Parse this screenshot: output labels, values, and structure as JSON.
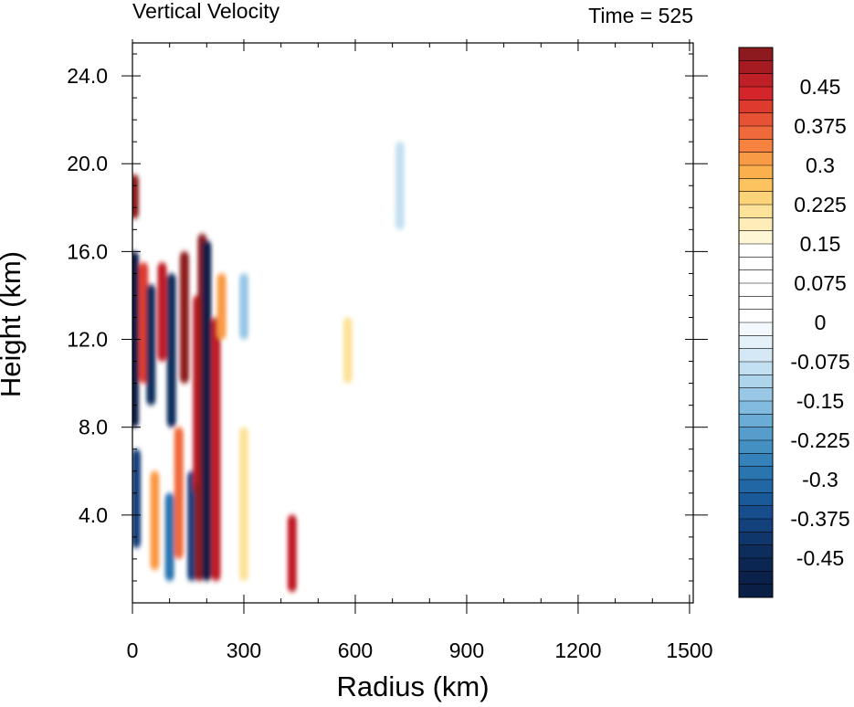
{
  "chart_data": {
    "type": "heatmap",
    "title": "Vertical Velocity",
    "subtitle": "Time = 525",
    "xlabel": "Radius (km)",
    "ylabel": "Height (km)",
    "xlim": [
      0,
      1510
    ],
    "ylim": [
      0,
      25.5
    ],
    "xticks": [
      "0",
      "300",
      "600",
      "900",
      "1200",
      "1500"
    ],
    "xtick_values": [
      0,
      300,
      600,
      900,
      1200,
      1500
    ],
    "yticks": [
      "4.0",
      "8.0",
      "12.0",
      "16.0",
      "20.0",
      "24.0"
    ],
    "ytick_values": [
      4,
      8,
      12,
      16,
      20,
      24
    ],
    "colorbar": {
      "levels": [
        -0.525,
        -0.5,
        -0.475,
        -0.45,
        -0.425,
        -0.4,
        -0.375,
        -0.35,
        -0.325,
        -0.3,
        -0.275,
        -0.25,
        -0.225,
        -0.2,
        -0.175,
        -0.15,
        -0.125,
        -0.1,
        -0.075,
        -0.05,
        -0.025,
        0,
        0.025,
        0.05,
        0.075,
        0.1,
        0.125,
        0.15,
        0.175,
        0.2,
        0.225,
        0.25,
        0.275,
        0.3,
        0.325,
        0.35,
        0.375,
        0.4,
        0.425,
        0.45,
        0.475,
        0.5,
        0.525
      ],
      "labels": [
        "0.45",
        "0.375",
        "0.3",
        "0.225",
        "0.15",
        "0.075",
        "0",
        "-0.075",
        "-0.15",
        "-0.225",
        "-0.3",
        "-0.375",
        "-0.45"
      ],
      "label_values": [
        0.45,
        0.375,
        0.3,
        0.225,
        0.15,
        0.075,
        0,
        -0.075,
        -0.15,
        -0.225,
        -0.3,
        -0.375,
        -0.45
      ],
      "colors_top_to_bottom": [
        "#8c1a1e",
        "#a61b22",
        "#bf1f26",
        "#d3252a",
        "#de3a2e",
        "#e85234",
        "#f0693a",
        "#f6823f",
        "#f99a44",
        "#fbb04d",
        "#fcc35f",
        "#fdd37a",
        "#fde29a",
        "#feedb8",
        "#fff6d6",
        "#ffffff",
        "#ffffff",
        "#ffffff",
        "#ffffff",
        "#ffffff",
        "#ffffff",
        "#f2f8fc",
        "#e4f1f9",
        "#d4e9f5",
        "#c2e0f1",
        "#aed4ec",
        "#98c8e6",
        "#81bbdf",
        "#6aacd6",
        "#569dcc",
        "#4490c3",
        "#3582ba",
        "#2a74b0",
        "#2167a6",
        "#1b5a9a",
        "#174d8c",
        "#13417c",
        "#10376b",
        "#0d2d5d",
        "#0b2652",
        "#0a2149",
        "#0a1f46"
      ]
    },
    "values": [
      {
        "r": 5,
        "z0": 8.0,
        "z1": 16.0,
        "w": -0.52
      },
      {
        "r": 5,
        "z0": 17.5,
        "z1": 19.5,
        "w": 0.5
      },
      {
        "r": 10,
        "z0": 2.5,
        "z1": 7.0,
        "w": -0.4
      },
      {
        "r": 30,
        "z0": 10.0,
        "z1": 15.5,
        "w": 0.4
      },
      {
        "r": 50,
        "z0": 9.0,
        "z1": 14.5,
        "w": -0.45
      },
      {
        "r": 60,
        "z0": 1.5,
        "z1": 6.0,
        "w": 0.3
      },
      {
        "r": 80,
        "z0": 11.0,
        "z1": 15.5,
        "w": 0.45
      },
      {
        "r": 100,
        "z0": 1.0,
        "z1": 5.0,
        "w": -0.3
      },
      {
        "r": 105,
        "z0": 8.0,
        "z1": 15.0,
        "w": -0.45
      },
      {
        "r": 125,
        "z0": 2.0,
        "z1": 8.0,
        "w": 0.35
      },
      {
        "r": 140,
        "z0": 10.0,
        "z1": 16.0,
        "w": 0.5
      },
      {
        "r": 160,
        "z0": 1.0,
        "z1": 6.0,
        "w": -0.4
      },
      {
        "r": 175,
        "z0": 5.0,
        "z1": 14.0,
        "w": 0.45
      },
      {
        "r": 180,
        "z0": 1.0,
        "z1": 5.5,
        "w": 0.5
      },
      {
        "r": 188,
        "z0": 2.0,
        "z1": 16.8,
        "w": 0.52
      },
      {
        "r": 200,
        "z0": 1.0,
        "z1": 16.5,
        "w": -0.52
      },
      {
        "r": 225,
        "z0": 1.0,
        "z1": 13.0,
        "w": 0.45
      },
      {
        "r": 240,
        "z0": 12.0,
        "z1": 15.0,
        "w": 0.3
      },
      {
        "r": 300,
        "z0": 1.0,
        "z1": 8.0,
        "w": 0.2
      },
      {
        "r": 300,
        "z0": 12.0,
        "z1": 15.0,
        "w": -0.15
      },
      {
        "r": 430,
        "z0": 0.5,
        "z1": 4.0,
        "w": 0.45
      },
      {
        "r": 580,
        "z0": 10.0,
        "z1": 13.0,
        "w": 0.2
      },
      {
        "r": 700,
        "z0": 18.0,
        "z1": 22.0,
        "w": 0.1
      },
      {
        "r": 720,
        "z0": 17.0,
        "z1": 21.0,
        "w": -0.1
      }
    ]
  }
}
